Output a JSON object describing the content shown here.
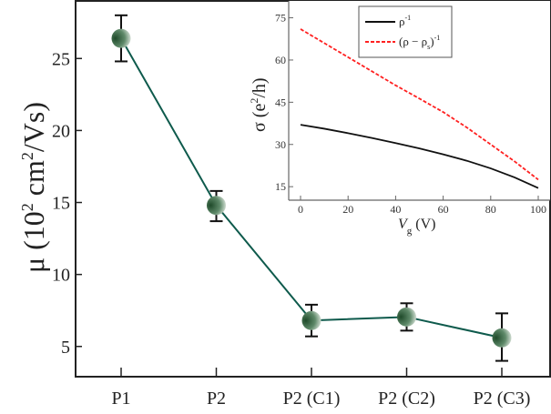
{
  "chart_data": [
    {
      "type": "line",
      "title": "",
      "xlabel": "",
      "ylabel": "μ (10² cm²/Vs)",
      "ylabel_parts": {
        "main": "μ (10",
        "sup": "2",
        "mid": " cm",
        "sup2": "2",
        "end": "/Vs)"
      },
      "categories": [
        "P1",
        "P2",
        "P2 (C1)",
        "P2 (C2)",
        "P2 (C3)"
      ],
      "values": [
        26.4,
        14.8,
        6.8,
        7.05,
        5.6
      ],
      "error_upper": [
        28.0,
        15.8,
        7.9,
        8.0,
        7.3
      ],
      "error_lower": [
        24.8,
        13.7,
        5.7,
        6.1,
        4.0
      ],
      "ylim": [
        2.9,
        29.0
      ],
      "yticks": [
        5,
        10,
        15,
        20,
        25
      ],
      "line_color": "#0e5a4c",
      "marker_color": "#2f5e3c"
    },
    {
      "type": "line",
      "title": "",
      "xlabel": "Vg (V)",
      "xlabel_parts": {
        "main": "V",
        "sub": "g",
        "end": " (V)"
      },
      "ylabel": "σ (e²/h)",
      "ylabel_parts": {
        "main": "σ (e",
        "sup": "2",
        "end": "/h)"
      },
      "xlim": [
        -4,
        102
      ],
      "ylim": [
        10.2,
        81
      ],
      "xticks": [
        0,
        20,
        40,
        60,
        80,
        100
      ],
      "yticks": [
        15,
        30,
        45,
        60,
        75
      ],
      "legend_position": "top-center",
      "series": [
        {
          "name": "ρ⁻¹",
          "legend": {
            "main": "ρ",
            "sup": "-1"
          },
          "style": "solid",
          "color": "#111111",
          "x": [
            0,
            10,
            20,
            30,
            40,
            50,
            60,
            70,
            80,
            90,
            100
          ],
          "y": [
            37,
            35.6,
            34,
            32.3,
            30.5,
            28.6,
            26.5,
            24.2,
            21.5,
            18.3,
            14.5
          ]
        },
        {
          "name": "(ρ − ρs)⁻¹",
          "legend": {
            "main": "(ρ − ρ",
            "sub": "s",
            "end": ")",
            "sup": "-1"
          },
          "style": "dashed",
          "color": "#ff2020",
          "x": [
            0,
            10,
            20,
            30,
            40,
            50,
            60,
            70,
            80,
            90,
            100
          ],
          "y": [
            71,
            66,
            61,
            56,
            51,
            46.3,
            41.5,
            36,
            30,
            24,
            17.5
          ]
        }
      ]
    }
  ]
}
